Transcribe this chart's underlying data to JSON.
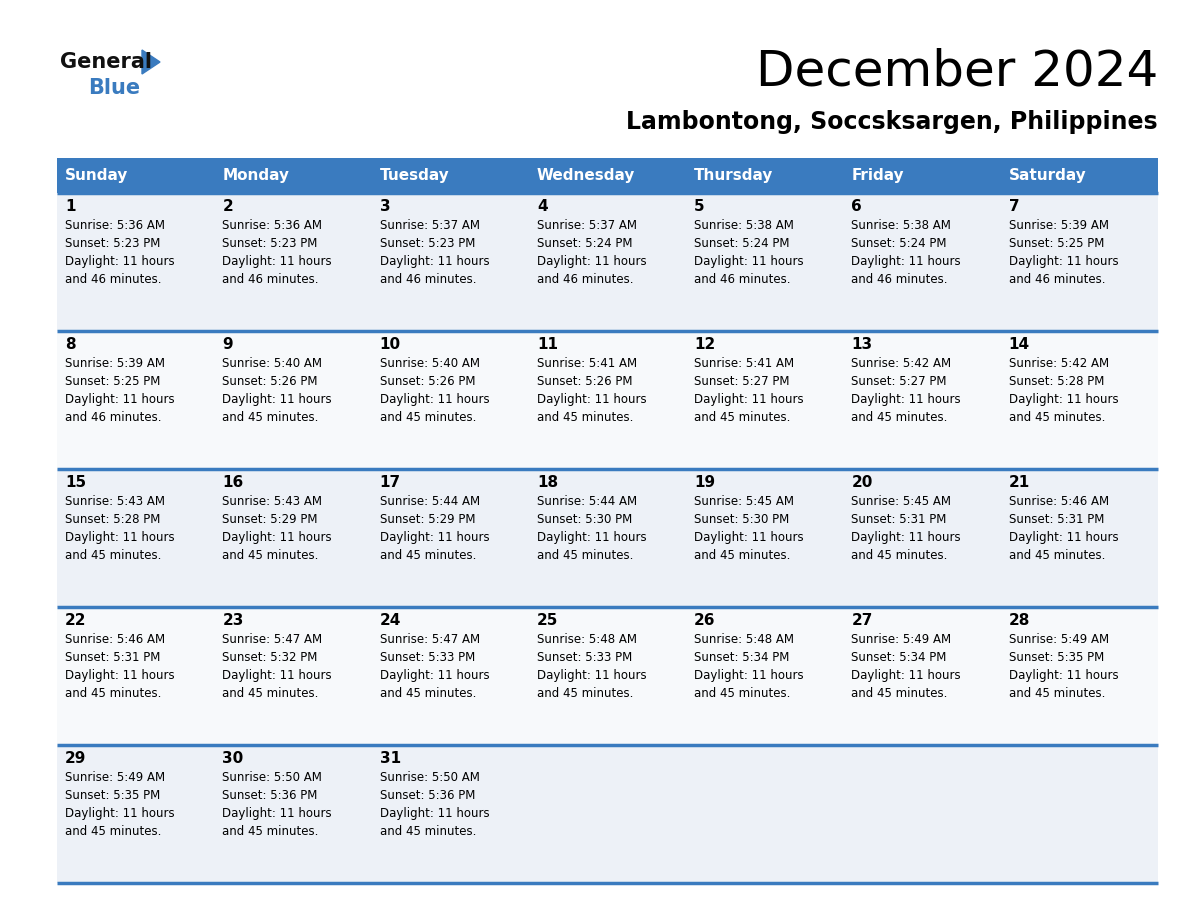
{
  "title": "December 2024",
  "subtitle": "Lambontong, Soccsksargen, Philippines",
  "header_color": "#3a7bbf",
  "header_text_color": "#ffffff",
  "border_color": "#3a7bbf",
  "row_bg_colors": [
    "#edf1f7",
    "#f7f9fb"
  ],
  "last_row_bg": "#f0f3f7",
  "day_headers": [
    "Sunday",
    "Monday",
    "Tuesday",
    "Wednesday",
    "Thursday",
    "Friday",
    "Saturday"
  ],
  "days": [
    {
      "day": 1,
      "col": 0,
      "row": 0,
      "sunrise": "5:36 AM",
      "sunset": "5:23 PM",
      "daylight": "11 hours and 46 minutes."
    },
    {
      "day": 2,
      "col": 1,
      "row": 0,
      "sunrise": "5:36 AM",
      "sunset": "5:23 PM",
      "daylight": "11 hours and 46 minutes."
    },
    {
      "day": 3,
      "col": 2,
      "row": 0,
      "sunrise": "5:37 AM",
      "sunset": "5:23 PM",
      "daylight": "11 hours and 46 minutes."
    },
    {
      "day": 4,
      "col": 3,
      "row": 0,
      "sunrise": "5:37 AM",
      "sunset": "5:24 PM",
      "daylight": "11 hours and 46 minutes."
    },
    {
      "day": 5,
      "col": 4,
      "row": 0,
      "sunrise": "5:38 AM",
      "sunset": "5:24 PM",
      "daylight": "11 hours and 46 minutes."
    },
    {
      "day": 6,
      "col": 5,
      "row": 0,
      "sunrise": "5:38 AM",
      "sunset": "5:24 PM",
      "daylight": "11 hours and 46 minutes."
    },
    {
      "day": 7,
      "col": 6,
      "row": 0,
      "sunrise": "5:39 AM",
      "sunset": "5:25 PM",
      "daylight": "11 hours and 46 minutes."
    },
    {
      "day": 8,
      "col": 0,
      "row": 1,
      "sunrise": "5:39 AM",
      "sunset": "5:25 PM",
      "daylight": "11 hours and 46 minutes."
    },
    {
      "day": 9,
      "col": 1,
      "row": 1,
      "sunrise": "5:40 AM",
      "sunset": "5:26 PM",
      "daylight": "11 hours and 45 minutes."
    },
    {
      "day": 10,
      "col": 2,
      "row": 1,
      "sunrise": "5:40 AM",
      "sunset": "5:26 PM",
      "daylight": "11 hours and 45 minutes."
    },
    {
      "day": 11,
      "col": 3,
      "row": 1,
      "sunrise": "5:41 AM",
      "sunset": "5:26 PM",
      "daylight": "11 hours and 45 minutes."
    },
    {
      "day": 12,
      "col": 4,
      "row": 1,
      "sunrise": "5:41 AM",
      "sunset": "5:27 PM",
      "daylight": "11 hours and 45 minutes."
    },
    {
      "day": 13,
      "col": 5,
      "row": 1,
      "sunrise": "5:42 AM",
      "sunset": "5:27 PM",
      "daylight": "11 hours and 45 minutes."
    },
    {
      "day": 14,
      "col": 6,
      "row": 1,
      "sunrise": "5:42 AM",
      "sunset": "5:28 PM",
      "daylight": "11 hours and 45 minutes."
    },
    {
      "day": 15,
      "col": 0,
      "row": 2,
      "sunrise": "5:43 AM",
      "sunset": "5:28 PM",
      "daylight": "11 hours and 45 minutes."
    },
    {
      "day": 16,
      "col": 1,
      "row": 2,
      "sunrise": "5:43 AM",
      "sunset": "5:29 PM",
      "daylight": "11 hours and 45 minutes."
    },
    {
      "day": 17,
      "col": 2,
      "row": 2,
      "sunrise": "5:44 AM",
      "sunset": "5:29 PM",
      "daylight": "11 hours and 45 minutes."
    },
    {
      "day": 18,
      "col": 3,
      "row": 2,
      "sunrise": "5:44 AM",
      "sunset": "5:30 PM",
      "daylight": "11 hours and 45 minutes."
    },
    {
      "day": 19,
      "col": 4,
      "row": 2,
      "sunrise": "5:45 AM",
      "sunset": "5:30 PM",
      "daylight": "11 hours and 45 minutes."
    },
    {
      "day": 20,
      "col": 5,
      "row": 2,
      "sunrise": "5:45 AM",
      "sunset": "5:31 PM",
      "daylight": "11 hours and 45 minutes."
    },
    {
      "day": 21,
      "col": 6,
      "row": 2,
      "sunrise": "5:46 AM",
      "sunset": "5:31 PM",
      "daylight": "11 hours and 45 minutes."
    },
    {
      "day": 22,
      "col": 0,
      "row": 3,
      "sunrise": "5:46 AM",
      "sunset": "5:31 PM",
      "daylight": "11 hours and 45 minutes."
    },
    {
      "day": 23,
      "col": 1,
      "row": 3,
      "sunrise": "5:47 AM",
      "sunset": "5:32 PM",
      "daylight": "11 hours and 45 minutes."
    },
    {
      "day": 24,
      "col": 2,
      "row": 3,
      "sunrise": "5:47 AM",
      "sunset": "5:33 PM",
      "daylight": "11 hours and 45 minutes."
    },
    {
      "day": 25,
      "col": 3,
      "row": 3,
      "sunrise": "5:48 AM",
      "sunset": "5:33 PM",
      "daylight": "11 hours and 45 minutes."
    },
    {
      "day": 26,
      "col": 4,
      "row": 3,
      "sunrise": "5:48 AM",
      "sunset": "5:34 PM",
      "daylight": "11 hours and 45 minutes."
    },
    {
      "day": 27,
      "col": 5,
      "row": 3,
      "sunrise": "5:49 AM",
      "sunset": "5:34 PM",
      "daylight": "11 hours and 45 minutes."
    },
    {
      "day": 28,
      "col": 6,
      "row": 3,
      "sunrise": "5:49 AM",
      "sunset": "5:35 PM",
      "daylight": "11 hours and 45 minutes."
    },
    {
      "day": 29,
      "col": 0,
      "row": 4,
      "sunrise": "5:49 AM",
      "sunset": "5:35 PM",
      "daylight": "11 hours and 45 minutes."
    },
    {
      "day": 30,
      "col": 1,
      "row": 4,
      "sunrise": "5:50 AM",
      "sunset": "5:36 PM",
      "daylight": "11 hours and 45 minutes."
    },
    {
      "day": 31,
      "col": 2,
      "row": 4,
      "sunrise": "5:50 AM",
      "sunset": "5:36 PM",
      "daylight": "11 hours and 45 minutes."
    }
  ],
  "num_rows": 5,
  "num_cols": 7
}
